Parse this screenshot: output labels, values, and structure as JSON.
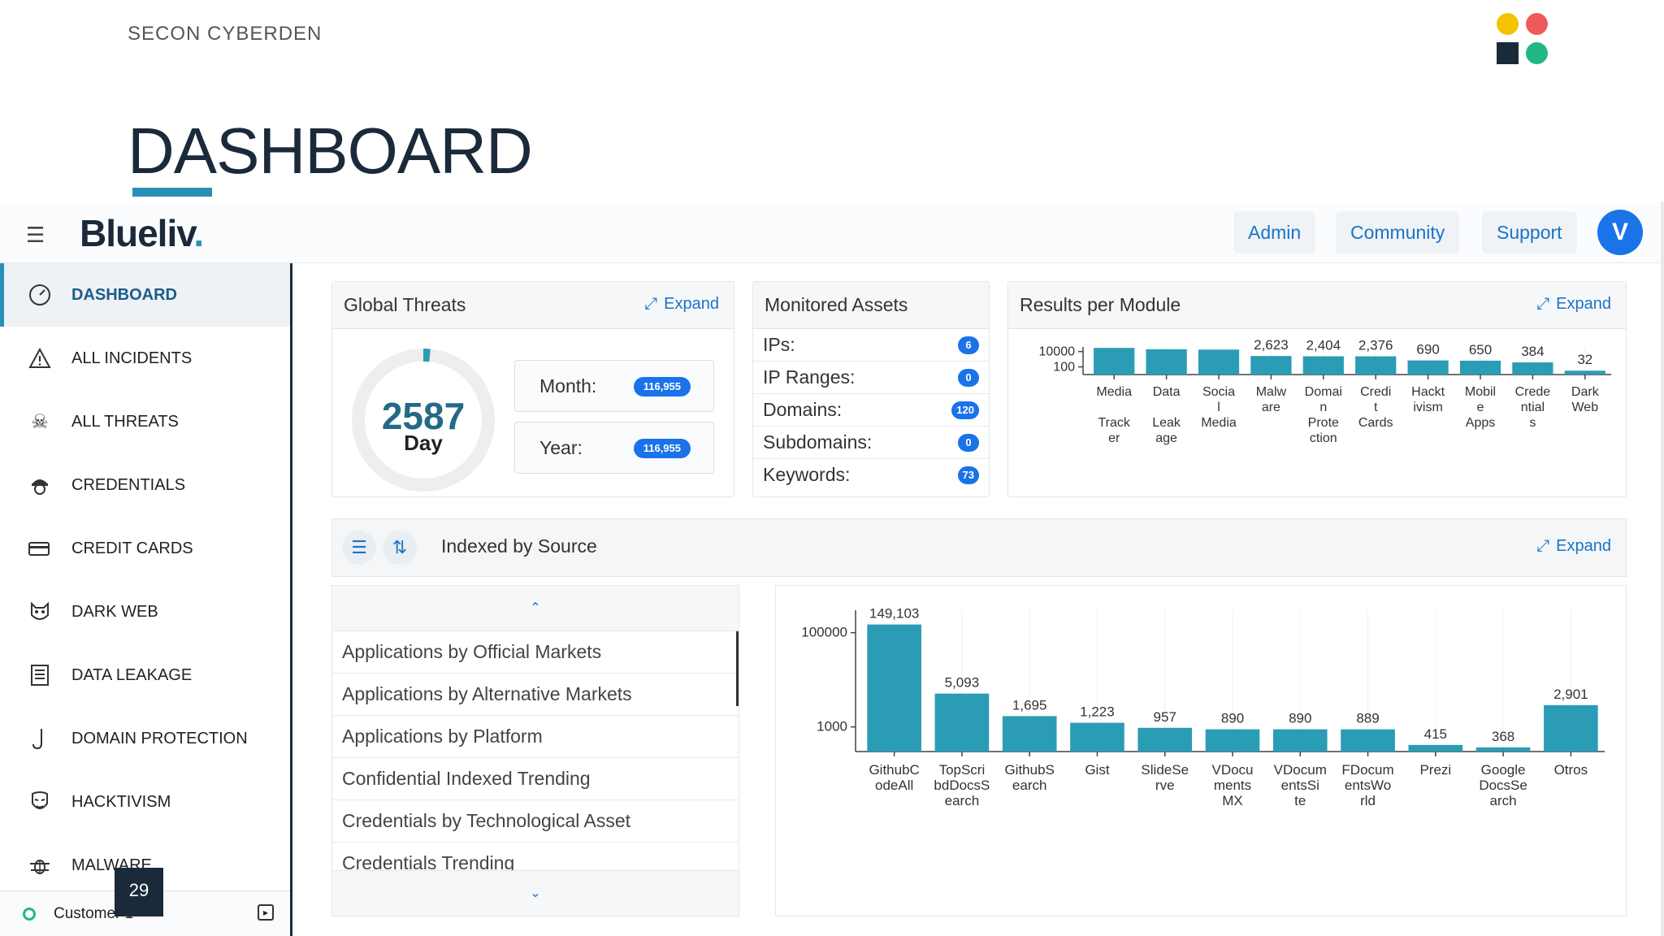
{
  "slide": {
    "brand": "SECON CYBERDEN",
    "title": "DASHBOARD",
    "page_number": "29"
  },
  "topbar": {
    "logo_text": "Blueliv",
    "logo_suffix": ".",
    "admin_label": "Admin",
    "community_label": "Community",
    "support_label": "Support",
    "avatar_initial": "V"
  },
  "sidebar": {
    "items": [
      {
        "label": "DASHBOARD",
        "icon": "speedometer-icon"
      },
      {
        "label": "ALL INCIDENTS",
        "icon": "warning-icon"
      },
      {
        "label": "ALL THREATS",
        "icon": "skull-icon"
      },
      {
        "label": "CREDENTIALS",
        "icon": "spy-icon"
      },
      {
        "label": "CREDIT CARDS",
        "icon": "credit-card-icon"
      },
      {
        "label": "DARK WEB",
        "icon": "mask-icon"
      },
      {
        "label": "DATA LEAKAGE",
        "icon": "document-icon"
      },
      {
        "label": "DOMAIN PROTECTION",
        "icon": "hook-icon"
      },
      {
        "label": "HACKTIVISM",
        "icon": "anonymous-mask-icon"
      },
      {
        "label": "MALWARE",
        "icon": "bug-icon"
      }
    ],
    "footer_label": "Customer 1"
  },
  "global_threats": {
    "title": "Global Threats",
    "expand_label": "Expand",
    "day_value": "2587",
    "day_label": "Day",
    "month_label": "Month:",
    "month_value": "116,955",
    "year_label": "Year:",
    "year_value": "116,955"
  },
  "monitored_assets": {
    "title": "Monitored Assets",
    "rows": [
      {
        "label": "IPs:",
        "count": "6"
      },
      {
        "label": "IP Ranges:",
        "count": "0"
      },
      {
        "label": "Domains:",
        "count": "120"
      },
      {
        "label": "Subdomains:",
        "count": "0"
      },
      {
        "label": "Keywords:",
        "count": "73"
      }
    ]
  },
  "results_per_module": {
    "title": "Results per Module",
    "expand_label": "Expand"
  },
  "indexed_by_source": {
    "title": "Indexed by Source",
    "expand_label": "Expand",
    "list": [
      "Applications by Official Markets",
      "Applications by Alternative Markets",
      "Applications by Platform",
      "Confidential Indexed Trending",
      "Credentials by Technological Asset",
      "Credentials Trending"
    ]
  },
  "colors": {
    "bar": "#2b9cb6",
    "accent": "#1a73e8",
    "link": "#1a73c8",
    "navy": "#1b2a3a"
  },
  "chart_data": [
    {
      "id": "results_per_module",
      "type": "bar",
      "scale": "log",
      "title": "Results per Module",
      "categories": [
        [
          "Media",
          "",
          "Track",
          "er"
        ],
        [
          "Data",
          "",
          "Leak",
          "age"
        ],
        [
          "Socia",
          "l",
          "Media"
        ],
        [
          "Malw",
          "are"
        ],
        [
          "Domai",
          "n",
          "Prote",
          "ction"
        ],
        [
          "Credi",
          "t",
          "Cards"
        ],
        [
          "Hackt",
          "ivism"
        ],
        [
          "Mobil",
          "e",
          "Apps"
        ],
        [
          "Crede",
          "ntial",
          "s"
        ],
        [
          "Dark",
          "Web"
        ]
      ],
      "values": [
        30000,
        20000,
        18000,
        2623,
        2404,
        2376,
        690,
        650,
        384,
        32
      ],
      "labels": [
        "",
        "",
        "",
        "2,623",
        "2,404",
        "2,376",
        "690",
        "650",
        "384",
        "32"
      ],
      "yticks": [
        {
          "value": 100,
          "label": "100"
        },
        {
          "value": 10000,
          "label": "10000"
        }
      ],
      "ylim": [
        10,
        40000
      ]
    },
    {
      "id": "indexed_by_source",
      "type": "bar",
      "scale": "log",
      "title": "Indexed by Source",
      "categories": [
        [
          "GithubC",
          "odeAll"
        ],
        [
          "TopScri",
          "bdDocsS",
          "earch"
        ],
        [
          "GithubS",
          "earch"
        ],
        [
          "Gist"
        ],
        [
          "SlideSe",
          "rve"
        ],
        [
          "VDocu",
          "ments",
          "MX"
        ],
        [
          "VDocum",
          "entsSi",
          "te"
        ],
        [
          "FDocum",
          "entsWo",
          "rld"
        ],
        [
          "Prezi"
        ],
        [
          "Google",
          "DocsSe",
          "arch"
        ],
        [
          "Otros"
        ]
      ],
      "values": [
        149103,
        5093,
        1695,
        1223,
        957,
        890,
        890,
        889,
        415,
        368,
        2901
      ],
      "labels": [
        "149,103",
        "5,093",
        "1,695",
        "1,223",
        "957",
        "890",
        "890",
        "889",
        "415",
        "368",
        "2,901"
      ],
      "yticks": [
        {
          "value": 1000,
          "label": "1000"
        },
        {
          "value": 100000,
          "label": "100000"
        }
      ],
      "ylim": [
        300,
        300000
      ]
    }
  ]
}
